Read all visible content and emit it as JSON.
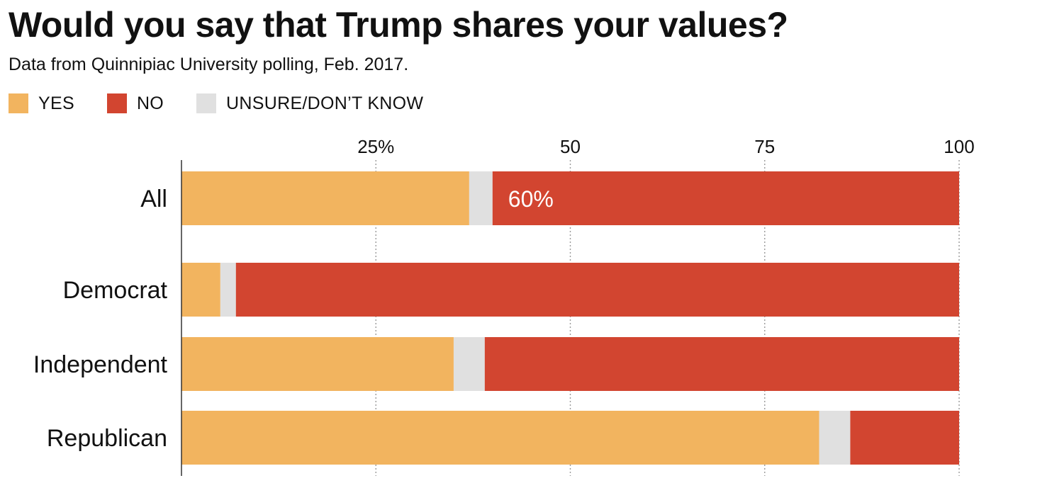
{
  "chart_data": {
    "type": "bar",
    "orientation": "horizontal",
    "stacked": true,
    "title": "Would you say that Trump shares your values?",
    "subtitle": "Data from Quinnipiac University polling, Feb. 2017.",
    "xlim": [
      0,
      100
    ],
    "xticks": [
      {
        "value": 25,
        "label": "25%"
      },
      {
        "value": 50,
        "label": "50"
      },
      {
        "value": 75,
        "label": "75"
      },
      {
        "value": 100,
        "label": "100"
      }
    ],
    "grid": true,
    "legend_position": "top-left",
    "categories": [
      "All",
      "Democrat",
      "Independent",
      "Republican"
    ],
    "series": [
      {
        "name": "YES",
        "color": "#f2b45f",
        "values": [
          37,
          5,
          35,
          82
        ]
      },
      {
        "name": "UNSURE/DON’T KNOW",
        "color": "#e0e0e0",
        "values": [
          3,
          2,
          4,
          4
        ]
      },
      {
        "name": "NO",
        "color": "#d24530",
        "values": [
          60,
          93,
          61,
          14
        ]
      }
    ],
    "annotations": [
      {
        "category": "All",
        "series": "NO",
        "text": "60%"
      }
    ]
  },
  "legend": [
    {
      "label": "YES",
      "color": "#f2b45f"
    },
    {
      "label": "NO",
      "color": "#d24530"
    },
    {
      "label": "UNSURE/DON’T KNOW",
      "color": "#e0e0e0"
    }
  ]
}
